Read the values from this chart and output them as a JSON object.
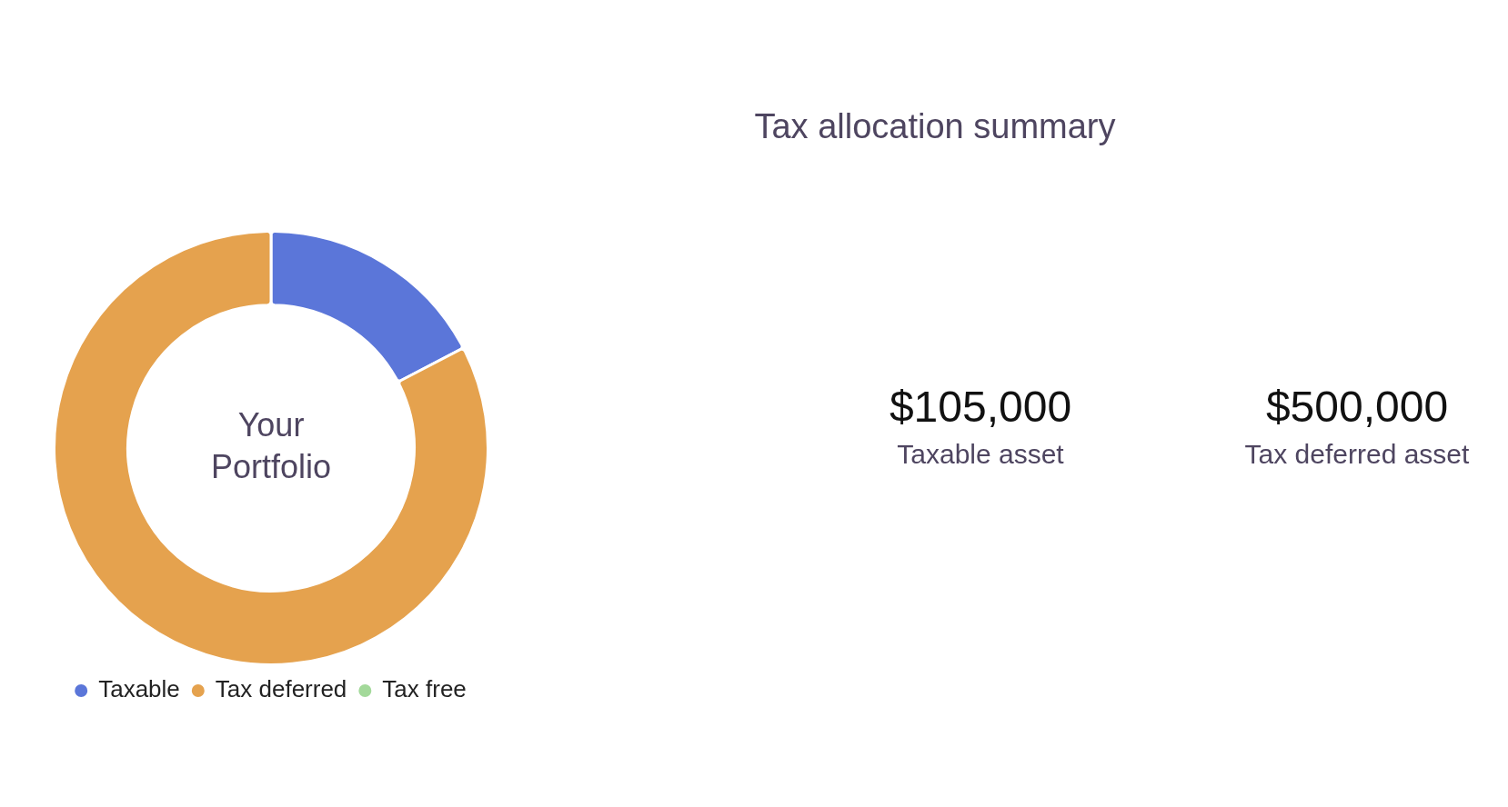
{
  "chart_data": [
    {
      "type": "donut",
      "categories": [
        "Taxable",
        "Tax deferred",
        "Tax free"
      ],
      "values": [
        17.36,
        82.64,
        0
      ],
      "colors": [
        "#5b76d9",
        "#e5a24e",
        "#a3d99a"
      ],
      "legend": "bottom",
      "annotations": [
        "Your Portfolio"
      ]
    },
    {
      "type": "other",
      "title": "Tax allocation summary",
      "annotations": [
        "$105,000",
        "Taxable asset",
        "$500,000",
        "Tax deferred asset"
      ]
    }
  ]
}
